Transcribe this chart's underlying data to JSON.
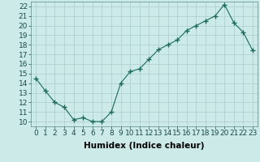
{
  "x": [
    0,
    1,
    2,
    3,
    4,
    5,
    6,
    7,
    8,
    9,
    10,
    11,
    12,
    13,
    14,
    15,
    16,
    17,
    18,
    19,
    20,
    21,
    22,
    23
  ],
  "y": [
    14.5,
    13.2,
    12.0,
    11.5,
    10.2,
    10.4,
    10.0,
    10.0,
    11.0,
    14.0,
    15.2,
    15.5,
    16.5,
    17.5,
    18.0,
    18.5,
    19.5,
    20.0,
    20.5,
    21.0,
    22.2,
    20.3,
    19.3,
    17.4
  ],
  "line_color": "#1a6b5a",
  "marker_color": "#1a6b5a",
  "bg_color": "#cceae8",
  "grid_color": "#aacccc",
  "xlabel": "Humidex (Indice chaleur)",
  "xlim": [
    -0.5,
    23.5
  ],
  "ylim": [
    9.5,
    22.5
  ],
  "xticks": [
    0,
    1,
    2,
    3,
    4,
    5,
    6,
    7,
    8,
    9,
    10,
    11,
    12,
    13,
    14,
    15,
    16,
    17,
    18,
    19,
    20,
    21,
    22,
    23
  ],
  "yticks": [
    10,
    11,
    12,
    13,
    14,
    15,
    16,
    17,
    18,
    19,
    20,
    21,
    22
  ],
  "xlabel_fontsize": 7.5,
  "tick_fontsize": 6.5
}
